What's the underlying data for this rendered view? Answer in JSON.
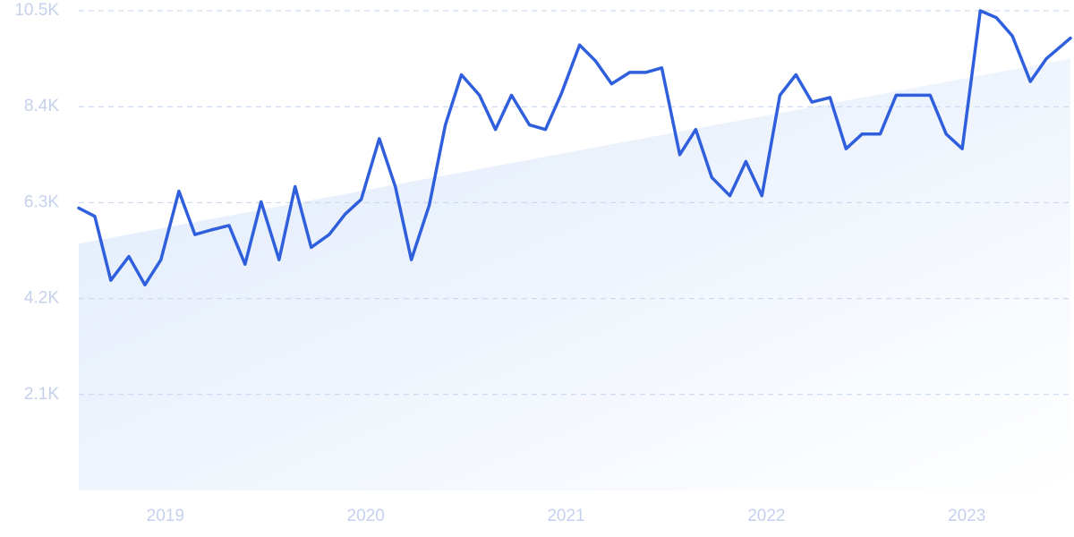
{
  "chart_data": {
    "type": "line",
    "title": "",
    "xlabel": "",
    "ylabel": "",
    "x_tick_labels": [
      "2019",
      "2020",
      "2021",
      "2022",
      "2023"
    ],
    "x_tick_values": [
      2019.0,
      2020.0,
      2021.0,
      2022.0,
      2023.0
    ],
    "y_tick_labels": [
      "2.1K",
      "4.2K",
      "6.3K",
      "8.4K",
      "10.5K"
    ],
    "y_tick_values": [
      2100,
      4200,
      6300,
      8400,
      10500
    ],
    "xlim": [
      2018.63,
      2023.58
    ],
    "ylim": [
      0,
      10500
    ],
    "grid": true,
    "legend": "none",
    "colors": {
      "line": "#2f5fdc",
      "area_start": "#dfeafb",
      "area_end": "#ffffff",
      "grid": "#c6d4ee",
      "tick_text": "#c5d1ec"
    },
    "trend": {
      "x": [
        2018.63,
        2023.58
      ],
      "y": [
        5400,
        9450
      ]
    },
    "series": [
      {
        "x": [
          2018.63,
          2018.71,
          2018.79,
          2018.88,
          2018.96,
          2019.04,
          2019.13,
          2019.21,
          2019.29,
          2019.38,
          2019.46,
          2019.54,
          2019.63,
          2019.71,
          2019.79,
          2019.88,
          2019.96,
          2020.04,
          2020.13,
          2020.21,
          2020.29,
          2020.38,
          2020.46,
          2020.54,
          2020.63,
          2020.71,
          2020.79,
          2020.88,
          2020.96,
          2021.04,
          2021.13,
          2021.21,
          2021.29,
          2021.38,
          2021.46,
          2021.54,
          2021.63,
          2021.71,
          2021.79,
          2021.88,
          2021.96,
          2022.04,
          2022.13,
          2022.21,
          2022.29,
          2022.38,
          2022.46,
          2022.54,
          2022.63,
          2022.71,
          2022.79,
          2022.88,
          2022.96,
          2023.04,
          2023.13,
          2023.21,
          2023.29,
          2023.38,
          2023.46,
          2023.54,
          2023.58
        ],
        "y": [
          6180,
          6000,
          4600,
          5120,
          4500,
          5050,
          6550,
          5600,
          5700,
          5800,
          4950,
          6320,
          5050,
          6650,
          5320,
          5600,
          6050,
          6370,
          7700,
          6650,
          5050,
          6250,
          8000,
          9100,
          8650,
          7900,
          8650,
          8000,
          7900,
          8700,
          9750,
          9400,
          8900,
          9150,
          9150,
          9250,
          7350,
          7900,
          6850,
          6450,
          7200,
          6450,
          8650,
          9100,
          8500,
          8600,
          7480,
          7800,
          7800,
          8650,
          8650,
          8650,
          7800,
          7480,
          10500,
          10350,
          9950,
          8950,
          9450,
          9750,
          9900
        ]
      }
    ]
  }
}
